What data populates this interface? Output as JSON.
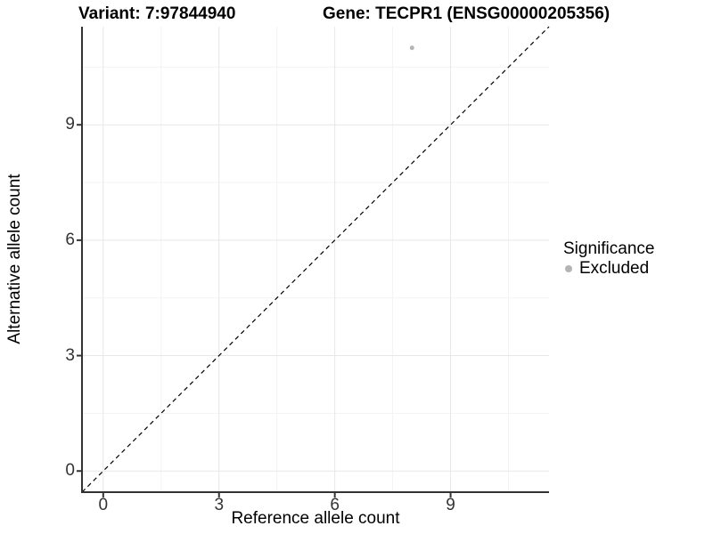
{
  "figure": {
    "title_left": "Variant: 7:97844940",
    "title_right": "Gene: TECPR1 (ENSG00000205356)"
  },
  "legend": {
    "title": "Significance",
    "items": [
      {
        "label": "Excluded",
        "icon": "circle-point-icon",
        "color": "#b4b4b4"
      }
    ]
  },
  "chart_data": {
    "type": "scatter",
    "titles": [
      "Variant: 7:97844940",
      "Gene: TECPR1 (ENSG00000205356)"
    ],
    "xlabel": "Reference allele count",
    "ylabel": "Alternative allele count",
    "xlim": [
      -0.55,
      11.55
    ],
    "ylim": [
      -0.55,
      11.55
    ],
    "x_major_ticks": [
      0,
      3,
      6,
      9
    ],
    "y_major_ticks": [
      0,
      3,
      6,
      9
    ],
    "x_minor_ticks": [
      1.5,
      4.5,
      7.5,
      10.5
    ],
    "y_minor_ticks": [
      1.5,
      4.5,
      7.5,
      10.5
    ],
    "grid": true,
    "legend_position": "right",
    "series": [
      {
        "name": "Excluded",
        "color": "#b4b4b4",
        "points": [
          [
            8,
            11
          ]
        ]
      }
    ],
    "annotations": [
      {
        "type": "identity-line",
        "equation": "y = x",
        "style": "dashed",
        "color": "#000000"
      }
    ],
    "colors": {
      "axis_line": "#333333",
      "tick_mark": "#333333",
      "tick_label": "#333333",
      "grid_major": "#e7e7e7",
      "grid_minor": "#f3f3f3",
      "background": "#ffffff"
    }
  }
}
